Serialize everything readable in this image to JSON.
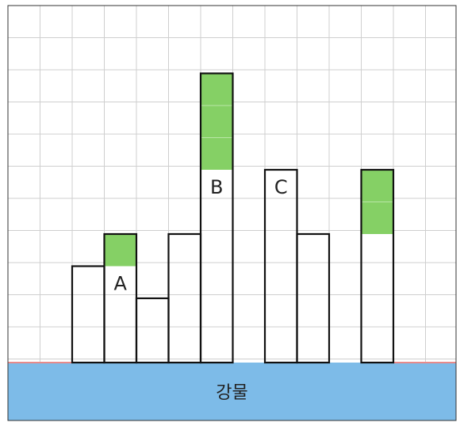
{
  "grid": {
    "cols": 14,
    "rows": 11
  },
  "river": {
    "label": "강물",
    "color": "#7dbbe8",
    "bank_color": "#e88a8a"
  },
  "colors": {
    "green": "#85d065",
    "block_stroke": "#111111",
    "grid_line": "#cfcfcf"
  },
  "columns": [
    {
      "col": 2,
      "height": 3,
      "green": 0,
      "label": ""
    },
    {
      "col": 3,
      "height": 4,
      "green": 1,
      "label": "A"
    },
    {
      "col": 4,
      "height": 2,
      "green": 0,
      "label": ""
    },
    {
      "col": 5,
      "height": 4,
      "green": 0,
      "label": ""
    },
    {
      "col": 6,
      "height": 9,
      "green": 3,
      "label": "B"
    },
    {
      "col": 8,
      "height": 6,
      "green": 0,
      "label": "C"
    },
    {
      "col": 9,
      "height": 4,
      "green": 0,
      "label": ""
    },
    {
      "col": 11,
      "height": 6,
      "green": 2,
      "label": ""
    }
  ]
}
